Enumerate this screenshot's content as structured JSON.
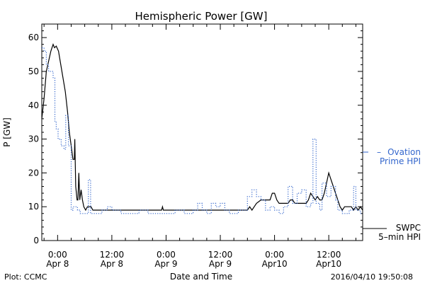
{
  "chart_data": {
    "type": "line",
    "title": "Hemispheric Power [GW]",
    "xlabel": "Date and Time",
    "ylabel": "P [GW]",
    "ylim": [
      0,
      64
    ],
    "xlim": [
      -3.5,
      67.5
    ],
    "yticks": [
      0,
      10,
      20,
      30,
      40,
      50,
      60
    ],
    "xticks": [
      {
        "x": 0,
        "line1": "0:00",
        "line2": "Apr 8"
      },
      {
        "x": 12,
        "line1": "12:00",
        "line2": "Apr 8"
      },
      {
        "x": 24,
        "line1": "0:00",
        "line2": "Apr 9"
      },
      {
        "x": 36,
        "line1": "12:00",
        "line2": "Apr 9"
      },
      {
        "x": 48,
        "line1": "0:00",
        "line2": "Apr10"
      },
      {
        "x": 60,
        "line1": "12:00",
        "line2": "Apr10"
      }
    ],
    "grid": false,
    "series": [
      {
        "name": "SWPC 5-min HPI",
        "color": "#000000",
        "style": "solid",
        "points": [
          [
            -3.5,
            36
          ],
          [
            -3.0,
            42
          ],
          [
            -2.5,
            50
          ],
          [
            -2.0,
            53
          ],
          [
            -1.5,
            56
          ],
          [
            -1.0,
            58
          ],
          [
            -0.7,
            57
          ],
          [
            -0.3,
            57.5
          ],
          [
            0.2,
            56
          ],
          [
            0.7,
            52
          ],
          [
            1.2,
            48
          ],
          [
            1.7,
            44
          ],
          [
            2.2,
            38
          ],
          [
            2.6,
            32
          ],
          [
            3.0,
            28
          ],
          [
            3.4,
            24
          ],
          [
            3.7,
            24
          ],
          [
            3.8,
            30
          ],
          [
            4.0,
            16
          ],
          [
            4.3,
            12
          ],
          [
            4.5,
            12
          ],
          [
            4.7,
            20
          ],
          [
            4.9,
            12
          ],
          [
            5.2,
            15
          ],
          [
            5.5,
            12
          ],
          [
            5.8,
            10
          ],
          [
            6.2,
            9
          ],
          [
            6.6,
            10
          ],
          [
            7.0,
            10
          ],
          [
            7.4,
            10
          ],
          [
            7.8,
            9
          ],
          [
            8.2,
            9
          ],
          [
            10,
            9
          ],
          [
            14,
            9
          ],
          [
            18,
            9
          ],
          [
            22,
            9
          ],
          [
            23.0,
            9
          ],
          [
            23.2,
            10
          ],
          [
            23.4,
            9
          ],
          [
            26,
            9
          ],
          [
            32,
            9
          ],
          [
            38,
            9
          ],
          [
            41,
            9
          ],
          [
            42.0,
            9
          ],
          [
            42.5,
            10
          ],
          [
            43.0,
            9
          ],
          [
            43.5,
            10
          ],
          [
            44,
            11
          ],
          [
            45,
            12
          ],
          [
            46,
            12
          ],
          [
            47,
            12
          ],
          [
            47.5,
            14
          ],
          [
            48,
            14
          ],
          [
            48.5,
            12
          ],
          [
            49,
            11
          ],
          [
            50,
            11
          ],
          [
            51,
            11
          ],
          [
            51.5,
            12
          ],
          [
            52,
            12
          ],
          [
            52.5,
            11
          ],
          [
            53,
            11
          ],
          [
            54,
            11
          ],
          [
            55,
            11
          ],
          [
            55.5,
            12
          ],
          [
            56,
            14
          ],
          [
            56.5,
            13
          ],
          [
            57,
            12
          ],
          [
            57.5,
            13
          ],
          [
            58,
            12
          ],
          [
            58.5,
            12
          ],
          [
            59,
            14
          ],
          [
            59.5,
            17
          ],
          [
            60,
            20
          ],
          [
            60.5,
            18
          ],
          [
            61,
            16
          ],
          [
            61.5,
            14
          ],
          [
            62,
            12
          ],
          [
            62.5,
            10
          ],
          [
            63,
            9
          ],
          [
            63.5,
            10
          ],
          [
            64,
            10
          ],
          [
            65,
            10
          ],
          [
            65.5,
            9
          ],
          [
            66,
            10
          ],
          [
            66.5,
            9
          ],
          [
            67,
            10
          ],
          [
            67.5,
            9
          ]
        ]
      },
      {
        "name": "Ovation Prime HPI",
        "color": "#3366cc",
        "style": "dotted",
        "points": [
          [
            -3.5,
            57
          ],
          [
            -3.0,
            57
          ],
          [
            -3.0,
            56
          ],
          [
            -2.5,
            56
          ],
          [
            -2.5,
            52
          ],
          [
            -2.0,
            52
          ],
          [
            -2.0,
            50
          ],
          [
            -1.0,
            50
          ],
          [
            -1.0,
            48
          ],
          [
            -0.6,
            48
          ],
          [
            -0.6,
            35
          ],
          [
            -0.3,
            35
          ],
          [
            -0.3,
            33
          ],
          [
            0.1,
            33
          ],
          [
            0.1,
            30
          ],
          [
            0.8,
            30
          ],
          [
            0.8,
            28
          ],
          [
            1.4,
            28
          ],
          [
            1.4,
            27
          ],
          [
            1.8,
            27
          ],
          [
            1.8,
            37
          ],
          [
            2.4,
            37
          ],
          [
            2.4,
            28
          ],
          [
            3.0,
            28
          ],
          [
            3.0,
            9
          ],
          [
            3.4,
            9
          ],
          [
            3.4,
            10
          ],
          [
            4.4,
            10
          ],
          [
            4.4,
            9
          ],
          [
            5.0,
            9
          ],
          [
            5.0,
            8
          ],
          [
            6.8,
            8
          ],
          [
            6.8,
            18
          ],
          [
            7.3,
            18
          ],
          [
            7.3,
            8
          ],
          [
            9.8,
            8
          ],
          [
            9.8,
            9
          ],
          [
            11,
            9
          ],
          [
            11,
            10
          ],
          [
            12,
            10
          ],
          [
            12,
            9
          ],
          [
            14,
            9
          ],
          [
            14,
            8
          ],
          [
            18,
            8
          ],
          [
            18,
            9
          ],
          [
            20,
            9
          ],
          [
            20,
            8
          ],
          [
            26,
            8
          ],
          [
            26,
            9
          ],
          [
            28,
            9
          ],
          [
            28,
            8
          ],
          [
            30,
            8
          ],
          [
            30,
            9
          ],
          [
            31,
            9
          ],
          [
            31,
            11
          ],
          [
            32,
            11
          ],
          [
            32,
            9
          ],
          [
            33,
            9
          ],
          [
            33,
            8
          ],
          [
            34,
            8
          ],
          [
            34,
            11
          ],
          [
            35,
            11
          ],
          [
            35,
            10
          ],
          [
            36,
            10
          ],
          [
            36,
            11
          ],
          [
            37,
            11
          ],
          [
            37,
            9
          ],
          [
            38,
            9
          ],
          [
            38,
            8
          ],
          [
            40,
            8
          ],
          [
            40,
            9
          ],
          [
            42,
            9
          ],
          [
            42,
            13
          ],
          [
            43,
            13
          ],
          [
            43,
            15
          ],
          [
            44,
            15
          ],
          [
            44,
            13
          ],
          [
            45,
            13
          ],
          [
            45,
            12
          ],
          [
            46,
            12
          ],
          [
            46,
            9
          ],
          [
            47,
            9
          ],
          [
            47,
            10
          ],
          [
            48,
            10
          ],
          [
            48,
            9
          ],
          [
            49,
            9
          ],
          [
            49,
            8
          ],
          [
            50,
            8
          ],
          [
            50,
            10
          ],
          [
            51,
            10
          ],
          [
            51,
            16
          ],
          [
            52,
            16
          ],
          [
            52,
            11
          ],
          [
            53,
            11
          ],
          [
            53,
            14
          ],
          [
            54,
            14
          ],
          [
            54,
            15
          ],
          [
            55,
            15
          ],
          [
            55,
            10
          ],
          [
            56,
            10
          ],
          [
            56,
            11
          ],
          [
            56.5,
            11
          ],
          [
            56.5,
            30
          ],
          [
            57.2,
            30
          ],
          [
            57.2,
            11
          ],
          [
            58,
            11
          ],
          [
            58,
            9
          ],
          [
            58.5,
            9
          ],
          [
            58.5,
            17
          ],
          [
            59.5,
            17
          ],
          [
            59.5,
            13
          ],
          [
            60.5,
            13
          ],
          [
            60.5,
            16
          ],
          [
            61.5,
            16
          ],
          [
            61.5,
            12
          ],
          [
            62,
            12
          ],
          [
            62,
            9
          ],
          [
            63,
            9
          ],
          [
            63,
            8
          ],
          [
            64.5,
            8
          ],
          [
            64.5,
            9
          ],
          [
            65.5,
            9
          ],
          [
            65.5,
            16
          ],
          [
            66,
            16
          ],
          [
            66,
            9
          ],
          [
            67,
            9
          ],
          [
            67,
            8
          ],
          [
            67.5,
            8
          ]
        ]
      }
    ],
    "legend": {
      "placement": "right",
      "ovation_dash": "–",
      "ovation_line1": "Ovation",
      "ovation_line2": "Prime HPI",
      "swpc_line1": "SWPC",
      "swpc_line2": "5–min HPI"
    }
  },
  "footer": {
    "left": "Plot: CCMC",
    "right": "2016/04/10 19:50:08"
  },
  "colors": {
    "ovation": "#3366cc",
    "swpc": "#000000"
  }
}
